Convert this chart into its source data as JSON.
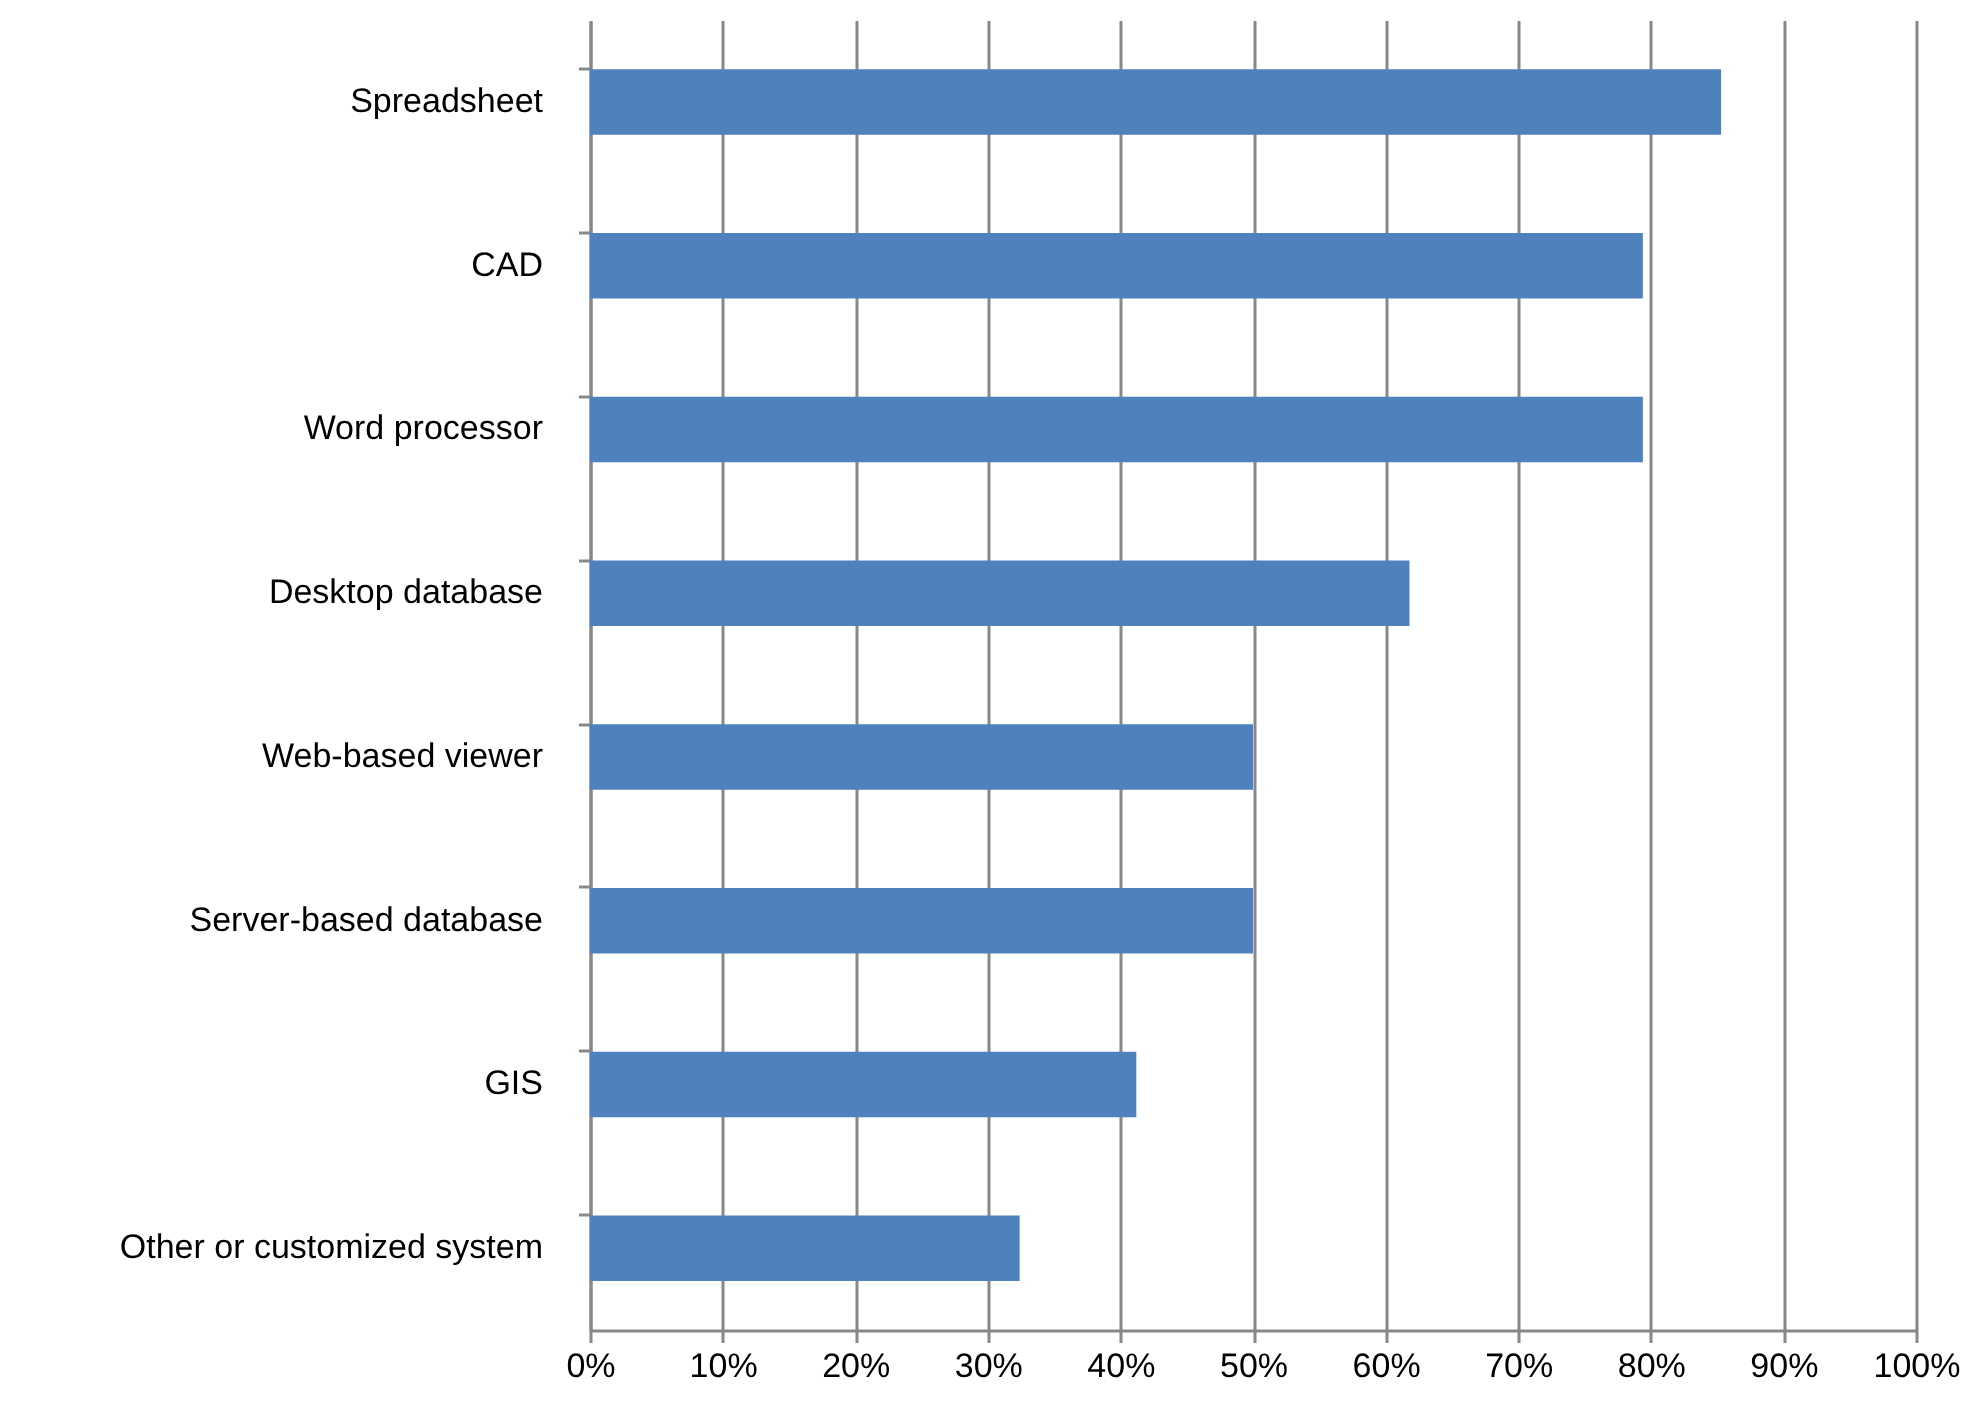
{
  "chart_data": {
    "type": "bar",
    "orientation": "horizontal",
    "categories": [
      "Spreadsheet",
      "CAD",
      "Word processor",
      "Desktop database",
      "Web-based viewer",
      "Server-based database",
      "GIS",
      "Other or customized system"
    ],
    "values": [
      85.3,
      79.4,
      79.4,
      61.8,
      50,
      50,
      41.2,
      32.4
    ],
    "color": "#4f81bd",
    "xlim": [
      0,
      100
    ],
    "xticks": [
      {
        "value": 0,
        "label": "0%"
      },
      {
        "value": 10,
        "label": "10%"
      },
      {
        "value": 20,
        "label": "20%"
      },
      {
        "value": 30,
        "label": "30%"
      },
      {
        "value": 40,
        "label": "40%"
      },
      {
        "value": 50,
        "label": "50%"
      },
      {
        "value": 60,
        "label": "60%"
      },
      {
        "value": 70,
        "label": "70%"
      },
      {
        "value": 80,
        "label": "80%"
      },
      {
        "value": 90,
        "label": "90%"
      },
      {
        "value": 100,
        "label": "100%"
      }
    ],
    "grid": "x"
  }
}
